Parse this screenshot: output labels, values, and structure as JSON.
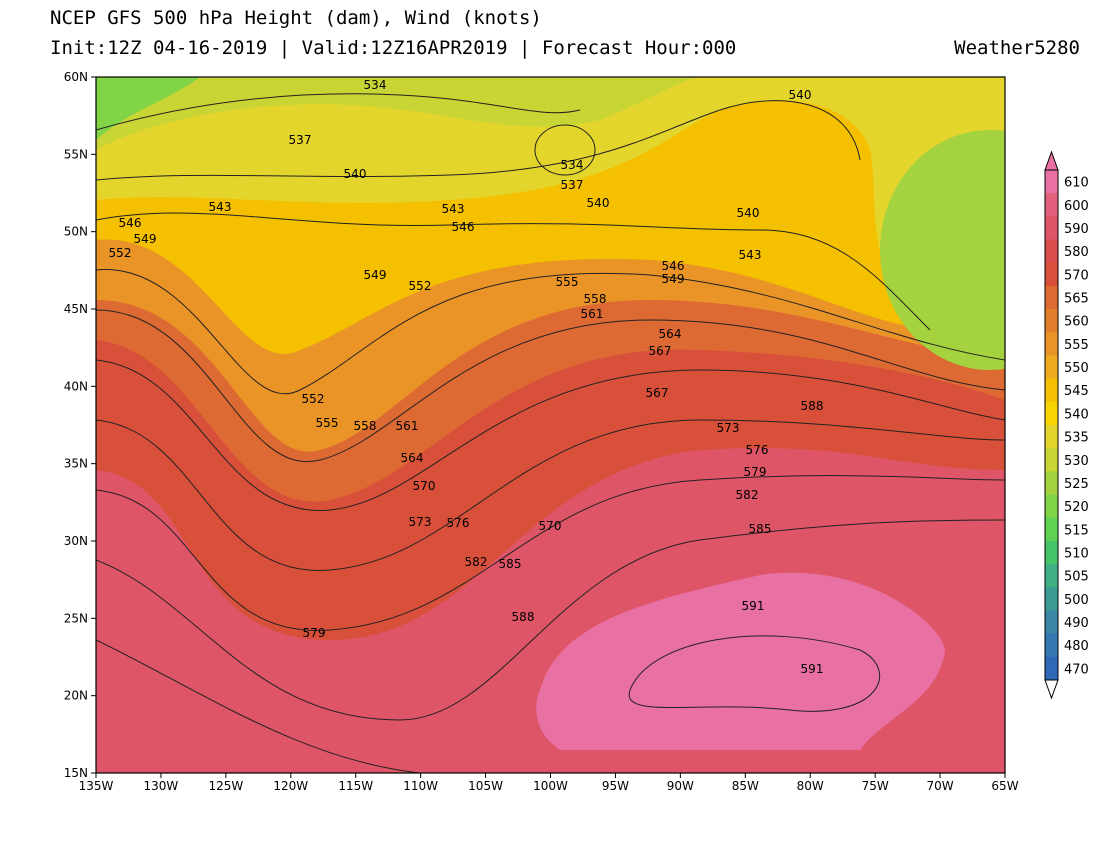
{
  "header": {
    "title": "NCEP GFS 500 hPa Height (dam), Wind (knots)",
    "subtitle": "Init:12Z 04-16-2019 | Valid:12Z16APR2019 | Forecast Hour:000",
    "brand": "Weather5280"
  },
  "map": {
    "lat_labels": [
      "60N",
      "55N",
      "50N",
      "45N",
      "40N",
      "35N",
      "30N",
      "25N",
      "20N",
      "15N"
    ],
    "lon_labels": [
      "135W",
      "130W",
      "125W",
      "120W",
      "115W",
      "110W",
      "105W",
      "100W",
      "95W",
      "90W",
      "85W",
      "80W",
      "75W",
      "70W",
      "65W"
    ],
    "contour_labels": [
      "534",
      "537",
      "540",
      "543",
      "546",
      "549",
      "552",
      "543",
      "546",
      "540",
      "549",
      "552",
      "555",
      "558",
      "561",
      "564",
      "567",
      "570",
      "573",
      "576",
      "579",
      "582",
      "585",
      "588",
      "591",
      "591",
      "540",
      "534",
      "537",
      "540",
      "543",
      "546",
      "549",
      "552",
      "555",
      "558",
      "561",
      "564",
      "567",
      "573",
      "576",
      "579",
      "582",
      "585",
      "588",
      "570"
    ]
  },
  "colorbar": {
    "labels": [
      "610",
      "600",
      "590",
      "580",
      "570",
      "565",
      "560",
      "555",
      "550",
      "545",
      "540",
      "535",
      "530",
      "525",
      "520",
      "515",
      "510",
      "505",
      "500",
      "490",
      "480",
      "470"
    ],
    "colors": [
      "#e870a2",
      "#e3607c",
      "#dd5566",
      "#d94c4c",
      "#d9503a",
      "#de6a33",
      "#e27f2c",
      "#ea9428",
      "#eeac22",
      "#f4c000",
      "#f8d500",
      "#e4d52c",
      "#c8d535",
      "#a4d33f",
      "#82d447",
      "#60d253",
      "#45c46a",
      "#3eb083",
      "#3c9b92",
      "#3a87a5",
      "#3577b3",
      "#3068b8"
    ]
  }
}
